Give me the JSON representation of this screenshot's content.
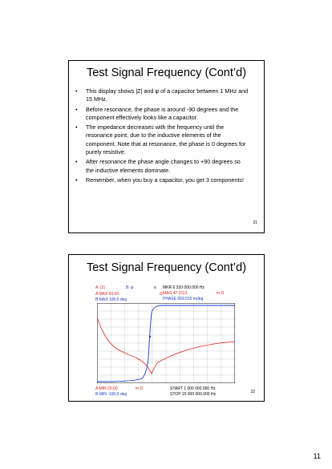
{
  "slide1": {
    "title": "Test Signal Frequency (Cont’d)",
    "bullets": [
      "This display shows |Z| and φ of a capacitor between 1 MHz and 15 MHz.",
      "Before resonance, the phase is around -90 degrees and the component effectively looks like a capacitor.",
      "The impedance decreases with the frequency until the resonance point, due to the inductive elements of the component.  Note that at resonance, the phase is 0 degrees for purely resistive.",
      "After resonance the phase angle changes to +90 degrees so the inductive elements dominate.",
      "Remember, when you buy a capacitor, you get 3 components!"
    ],
    "number": "21"
  },
  "slide2": {
    "title": "Test Signal Frequency (Cont’d)",
    "number": "22",
    "analyzer": {
      "trace_a_label": "A: |Z|",
      "trace_b_label": "B:  φ",
      "a_max": "A MAX  50.00",
      "a_max_unit": "Ω",
      "b_max": "B MAX  100.0    deg",
      "marker_symbol": "o",
      "marker": "MKR   6 320 000.000 Hz",
      "mag": "MAG     47.2113",
      "mag_unit": "m  Ω",
      "phase": "PHASE    659.015   mdeg",
      "a_min": "A MIN   20.00",
      "a_min_unit": "m Ω",
      "b_min": "B MIN  -100.0   deg",
      "start": "START   1 000 000.000 Hz",
      "stop": "STOP  15 000 000.000 Hz"
    },
    "colors": {
      "magnitude": "#e02020",
      "phase": "#1a3ad0"
    }
  },
  "page_number": "11"
}
